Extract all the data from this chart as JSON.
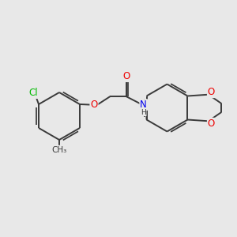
{
  "background_color": "#e8e8e8",
  "bond_color": "#3a3a3a",
  "bond_width": 1.4,
  "atom_colors": {
    "Cl": "#00bb00",
    "O": "#ee0000",
    "N": "#0000ee",
    "C": "#3a3a3a",
    "H": "#3a3a3a"
  },
  "font_size_atom": 8.5,
  "scale": 1.0
}
